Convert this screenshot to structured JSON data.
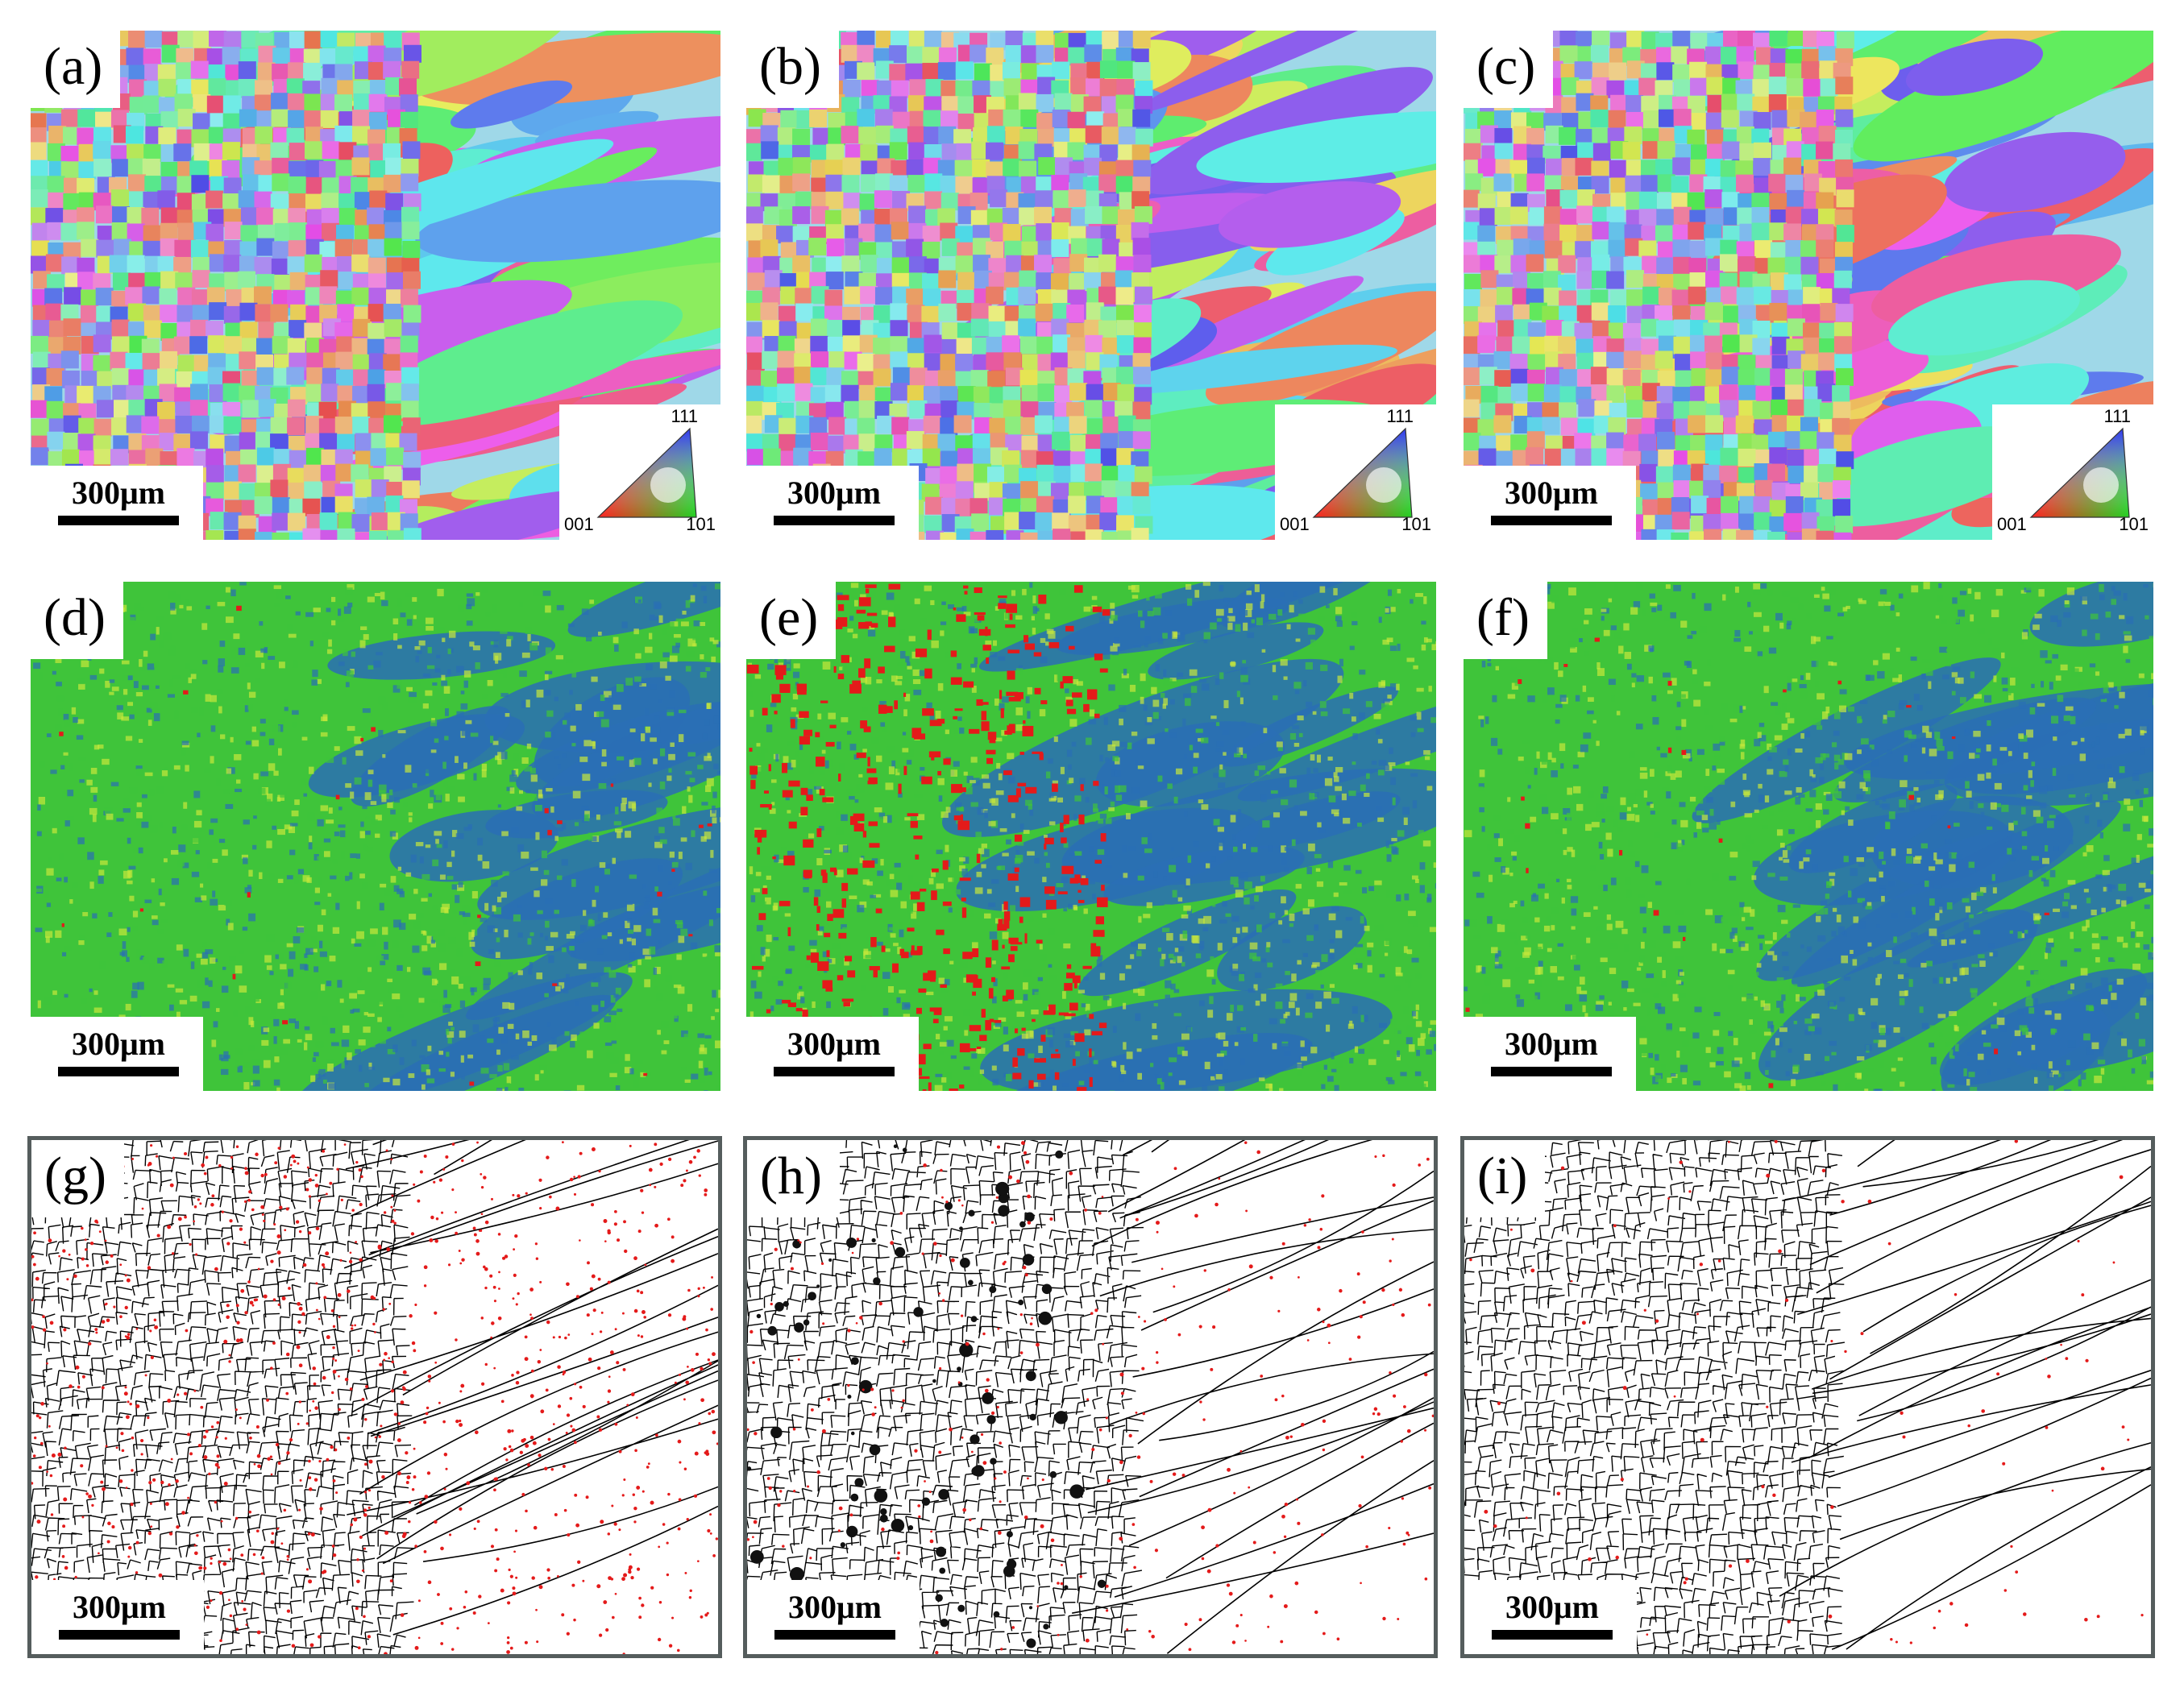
{
  "panels": [
    {
      "label": "(a)",
      "type": "ipf",
      "scale_bar": "300μm"
    },
    {
      "label": "(b)",
      "type": "ipf",
      "scale_bar": "300μm"
    },
    {
      "label": "(c)",
      "type": "ipf",
      "scale_bar": "300μm"
    },
    {
      "label": "(d)",
      "type": "kam",
      "scale_bar": "300μm"
    },
    {
      "label": "(e)",
      "type": "kam",
      "scale_bar": "300μm"
    },
    {
      "label": "(f)",
      "type": "kam",
      "scale_bar": "300μm"
    },
    {
      "label": "(g)",
      "type": "boundary",
      "scale_bar": "300μm"
    },
    {
      "label": "(h)",
      "type": "boundary",
      "scale_bar": "300μm"
    },
    {
      "label": "(i)",
      "type": "boundary",
      "scale_bar": "300μm"
    }
  ],
  "ipf_legend": {
    "top": "111",
    "left": "001",
    "right": "101"
  },
  "colors": {
    "kam_low": "#2a6fb5",
    "kam_mid": "#3fc43a",
    "kam_high_mid": "#c8e83a",
    "kam_high": "#e41a1a",
    "boundary_high_angle": "#000000",
    "boundary_low_angle": "#e41a1a",
    "frame": "#555d5d"
  }
}
